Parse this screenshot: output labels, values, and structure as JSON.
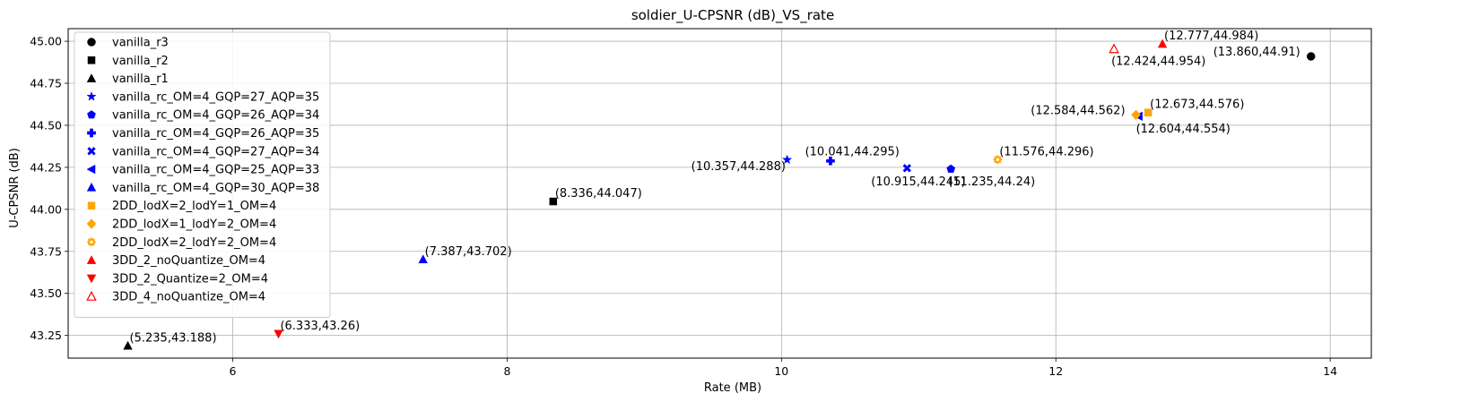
{
  "chart_data": {
    "type": "scatter",
    "title": "soldier_U-CPSNR (dB)_VS_rate",
    "xlabel": "Rate (MB)",
    "ylabel": "U-CPSNR (dB)",
    "xlim": [
      4.8,
      14.3
    ],
    "ylim": [
      43.115,
      45.075
    ],
    "xticks": [
      "6",
      "8",
      "10",
      "12",
      "14"
    ],
    "xtick_values": [
      6,
      8,
      10,
      12,
      14
    ],
    "yticks": [
      "43.25",
      "43.50",
      "43.75",
      "44.00",
      "44.25",
      "44.50",
      "44.75",
      "45.00"
    ],
    "ytick_values": [
      43.25,
      43.5,
      43.75,
      44.0,
      44.25,
      44.5,
      44.75,
      45.0
    ],
    "grid": true,
    "legend_position": "upper-left",
    "series": [
      {
        "name": "vanilla_r3",
        "marker": "circle",
        "color": "#000000",
        "filled": true,
        "points": [
          {
            "x": 13.86,
            "y": 44.91,
            "label": "(13.860,44.91)",
            "label_pos": "left"
          }
        ]
      },
      {
        "name": "vanilla_r2",
        "marker": "square",
        "color": "#000000",
        "filled": true,
        "points": [
          {
            "x": 8.336,
            "y": 44.047,
            "label": "(8.336,44.047)",
            "label_pos": "upper-right"
          }
        ]
      },
      {
        "name": "vanilla_r1",
        "marker": "triangle-up",
        "color": "#000000",
        "filled": true,
        "points": [
          {
            "x": 5.235,
            "y": 43.188,
            "label": "(5.235,43.188)",
            "label_pos": "upper-right"
          }
        ]
      },
      {
        "name": "vanilla_rc_OM=4_GQP=27_AQP=35",
        "marker": "star",
        "color": "#0000ff",
        "filled": true,
        "points": [
          {
            "x": 10.041,
            "y": 44.295,
            "label": "(10.041,44.295)",
            "label_pos": "right-up"
          }
        ]
      },
      {
        "name": "vanilla_rc_OM=4_GQP=26_AQP=34",
        "marker": "pentagon",
        "color": "#0000ff",
        "filled": true,
        "points": [
          {
            "x": 11.235,
            "y": 44.24,
            "label": "(11.235,44.24)",
            "label_pos": "lower-right"
          }
        ]
      },
      {
        "name": "vanilla_rc_OM=4_GQP=26_AQP=35",
        "marker": "plus",
        "color": "#0000ff",
        "filled": true,
        "points": [
          {
            "x": 10.357,
            "y": 44.288,
            "label": "(10.357,44.288)",
            "label_pos": "far-left-down"
          }
        ]
      },
      {
        "name": "vanilla_rc_OM=4_GQP=27_AQP=34",
        "marker": "x",
        "color": "#0000ff",
        "filled": true,
        "points": [
          {
            "x": 10.915,
            "y": 44.245,
            "label": "(10.915,44.245)",
            "label_pos": "lower-left"
          }
        ]
      },
      {
        "name": "vanilla_rc_OM=4_GQP=25_AQP=33",
        "marker": "triangle-left",
        "color": "#0000ff",
        "filled": true,
        "points": [
          {
            "x": 12.604,
            "y": 44.554,
            "label": "(12.604,44.554)",
            "label_pos": "lower-right"
          }
        ]
      },
      {
        "name": "vanilla_rc_OM=4_GQP=30_AQP=38",
        "marker": "triangle-up",
        "color": "#0000ff",
        "filled": true,
        "points": [
          {
            "x": 7.387,
            "y": 43.702,
            "label": "(7.387,43.702)",
            "label_pos": "upper-right"
          }
        ]
      },
      {
        "name": "2DD_lodX=2_lodY=1_OM=4",
        "marker": "square",
        "color": "#ffa500",
        "filled": true,
        "points": [
          {
            "x": 12.673,
            "y": 44.576,
            "label": "(12.673,44.576)",
            "label_pos": "upper-right"
          }
        ]
      },
      {
        "name": "2DD_lodX=1_lodY=2_OM=4",
        "marker": "diamond",
        "color": "#ffa500",
        "filled": true,
        "points": [
          {
            "x": 12.584,
            "y": 44.562,
            "label": "(12.584,44.562)",
            "label_pos": "left"
          }
        ]
      },
      {
        "name": "2DD_lodX=2_lodY=2_OM=4",
        "marker": "gear",
        "color": "#ffa500",
        "filled": true,
        "points": [
          {
            "x": 11.576,
            "y": 44.296,
            "label": "(11.576,44.296)",
            "label_pos": "upper-right"
          }
        ]
      },
      {
        "name": "3DD_2_noQuantize_OM=4",
        "marker": "triangle-up",
        "color": "#ff0000",
        "filled": true,
        "points": [
          {
            "x": 12.777,
            "y": 44.984,
            "label": "(12.777,44.984)",
            "label_pos": "upper-right"
          }
        ]
      },
      {
        "name": "3DD_2_Quantize=2_OM=4",
        "marker": "triangle-down",
        "color": "#ff0000",
        "filled": true,
        "points": [
          {
            "x": 6.333,
            "y": 43.26,
            "label": "(6.333,43.26)",
            "label_pos": "upper-right"
          }
        ]
      },
      {
        "name": "3DD_4_noQuantize_OM=4",
        "marker": "triangle-up",
        "color": "#ff0000",
        "filled": false,
        "points": [
          {
            "x": 12.424,
            "y": 44.954,
            "label": "(12.424,44.954)",
            "label_pos": "lower-right"
          }
        ]
      }
    ]
  }
}
